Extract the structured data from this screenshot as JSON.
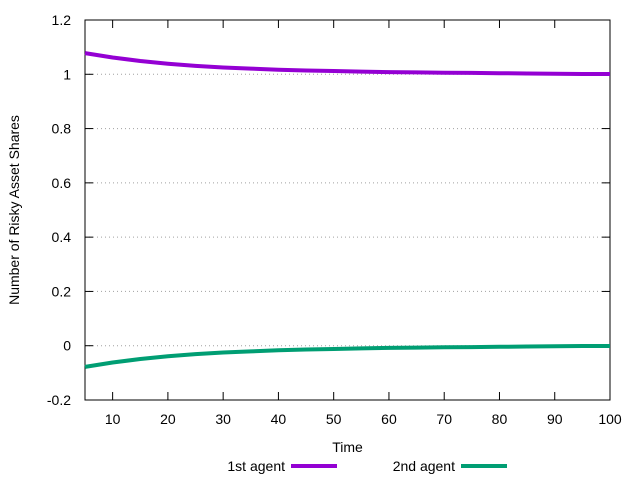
{
  "chart_data": {
    "type": "line",
    "title": "",
    "xlabel": "Time",
    "ylabel": "Number of Risky Asset Shares",
    "xlim": [
      5,
      100
    ],
    "ylim": [
      -0.2,
      1.2
    ],
    "xticks": [
      10,
      20,
      30,
      40,
      50,
      60,
      70,
      80,
      90,
      100
    ],
    "xtick_labels": [
      "10",
      "20",
      "30",
      "40",
      "50",
      "60",
      "70",
      "80",
      "90",
      "100"
    ],
    "yticks": [
      -0.2,
      0,
      0.2,
      0.4,
      0.6,
      0.8,
      1,
      1.2
    ],
    "ytick_labels": [
      "-0.2",
      "0",
      "0.2",
      "0.4",
      "0.6",
      "0.8",
      "1",
      "1.2"
    ],
    "grid": "horizontal dotted",
    "legend_position": "bottom",
    "x": [
      5,
      10,
      15,
      20,
      25,
      30,
      35,
      40,
      45,
      50,
      55,
      60,
      65,
      70,
      75,
      80,
      85,
      90,
      95,
      100
    ],
    "series": [
      {
        "name": "1st agent",
        "color": "#9400d3",
        "values": [
          1.078,
          1.062,
          1.049,
          1.039,
          1.031,
          1.025,
          1.021,
          1.017,
          1.014,
          1.012,
          1.01,
          1.008,
          1.007,
          1.006,
          1.005,
          1.004,
          1.003,
          1.002,
          1.001,
          1.001
        ]
      },
      {
        "name": "2nd agent",
        "color": "#009e73",
        "values": [
          -0.078,
          -0.062,
          -0.049,
          -0.039,
          -0.031,
          -0.025,
          -0.021,
          -0.017,
          -0.014,
          -0.012,
          -0.01,
          -0.008,
          -0.007,
          -0.006,
          -0.005,
          -0.004,
          -0.003,
          -0.002,
          -0.001,
          -0.001
        ]
      }
    ]
  }
}
